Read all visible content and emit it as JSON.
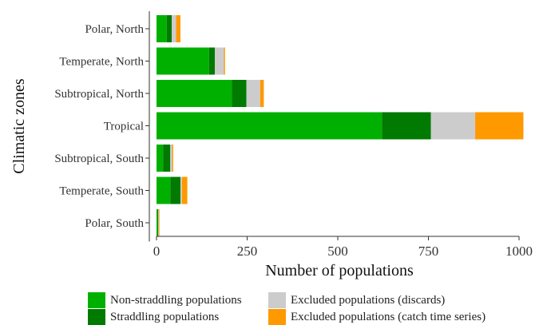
{
  "chart_data": {
    "type": "bar",
    "orientation": "horizontal",
    "stacked": true,
    "categories": [
      "Polar, North",
      "Temperate, North",
      "Subtropical, North",
      "Tropical",
      "Subtropical, South",
      "Temperate, South",
      "Polar, South"
    ],
    "series": [
      {
        "name": "Non-straddling populations",
        "color": "#00b000",
        "values": [
          28,
          145,
          208,
          622,
          18,
          38,
          3
        ]
      },
      {
        "name": "Straddling populations",
        "color": "#007a00",
        "values": [
          14,
          16,
          40,
          135,
          20,
          28,
          2
        ]
      },
      {
        "name": "Excluded populations (discards)",
        "color": "#cccccc",
        "values": [
          12,
          25,
          38,
          122,
          5,
          4,
          1
        ]
      },
      {
        "name": "Excluded populations (catch time series)",
        "color": "#ff9900",
        "values": [
          12,
          3,
          10,
          133,
          3,
          15,
          2
        ]
      }
    ],
    "xlabel": "Number of populations",
    "ylabel": "Climatic zones",
    "xlim": [
      0,
      1020
    ],
    "xticks": [
      0,
      250,
      500,
      750,
      1000
    ],
    "xtick_labels": [
      "0",
      "250",
      "500",
      "750",
      "1000"
    ],
    "grid": false,
    "legend_position": "bottom"
  }
}
